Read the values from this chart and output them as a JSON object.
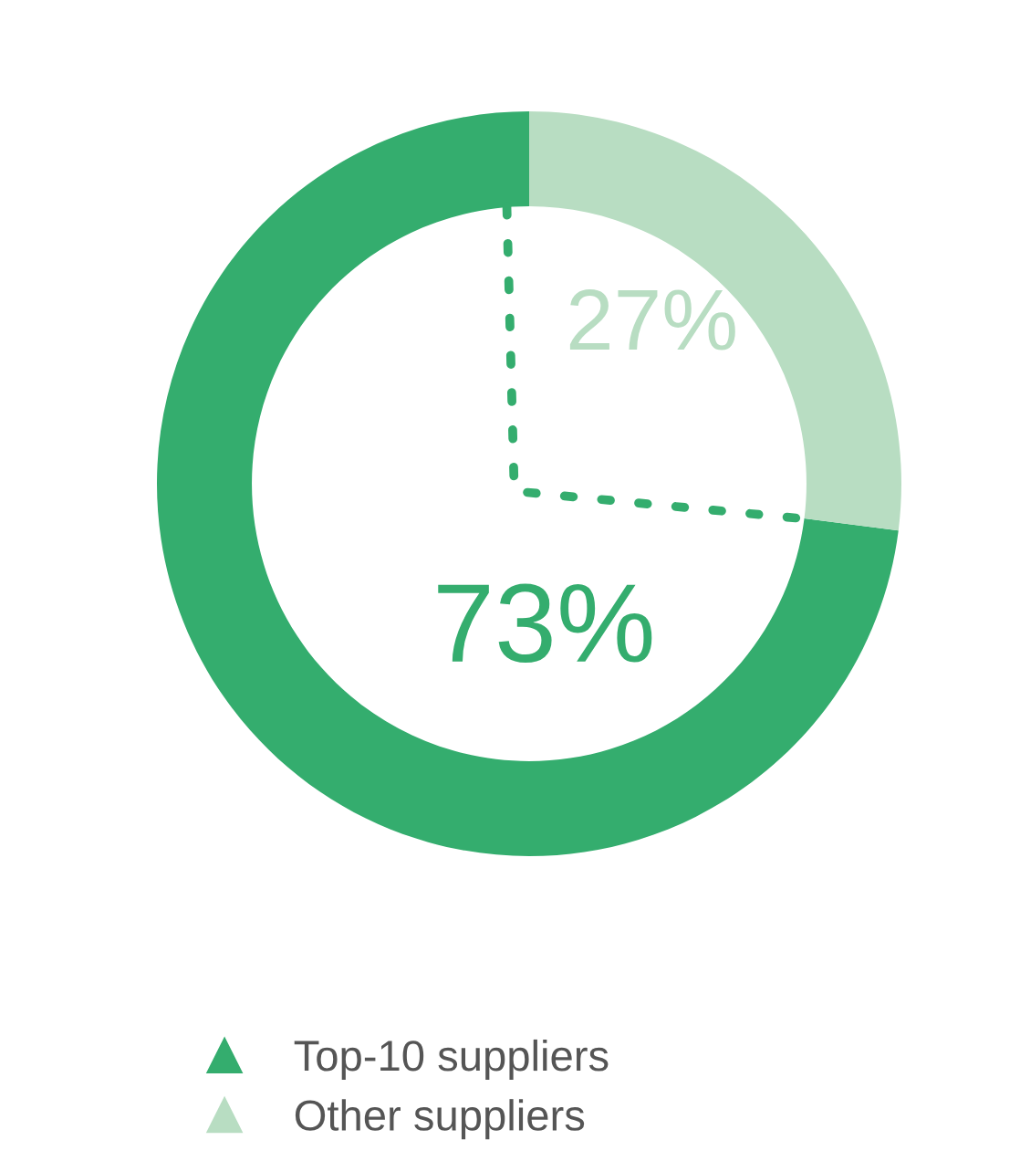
{
  "chart_data": {
    "type": "donut",
    "categories": [
      "Top-10 suppliers",
      "Other suppliers"
    ],
    "values": [
      73,
      27
    ],
    "colors": [
      "#34ad6e",
      "#b8ddc2"
    ],
    "value_labels": [
      "73%",
      "27%"
    ],
    "legend": "bottom"
  }
}
